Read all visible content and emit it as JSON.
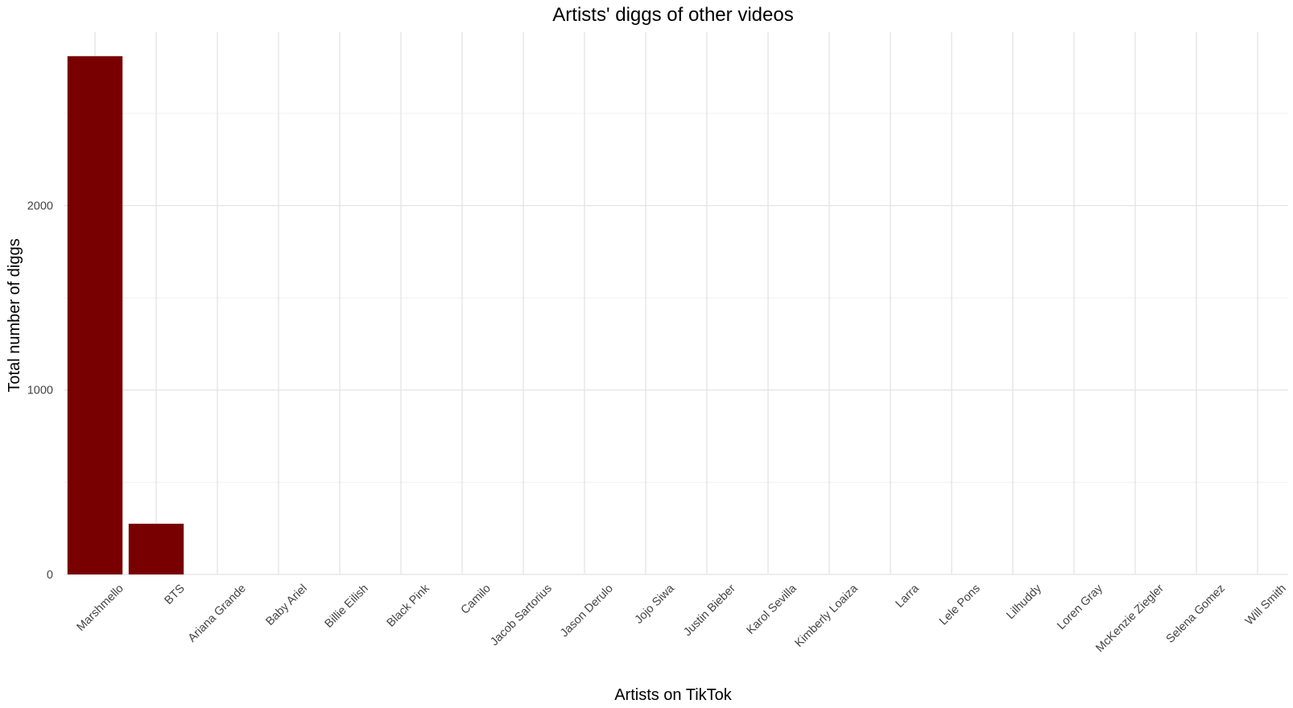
{
  "chart_data": {
    "type": "bar",
    "title": "Artists' diggs of other videos",
    "xlabel": "Artists on TikTok",
    "ylabel": "Total number of diggs",
    "categories": [
      "Marshmello",
      "BTS",
      "Ariana Grande",
      "Baby Ariel",
      "Billie Eilish",
      "Black Pink",
      "Camilo",
      "Jacob Sartorius",
      "Jason Derulo",
      "Jojo Siwa",
      "Justin Bieber",
      "Karol Sevilla",
      "Kimberly Loaiza",
      "Larra",
      "Lele Pons",
      "Lilhuddy",
      "Loren Gray",
      "McKenzie Ziegler",
      "Selena Gomez",
      "Will Smith"
    ],
    "values": [
      2810,
      275,
      0,
      0,
      0,
      0,
      0,
      0,
      0,
      0,
      0,
      0,
      0,
      0,
      0,
      0,
      0,
      0,
      0,
      0
    ],
    "yticks": [
      0,
      1000,
      2000
    ],
    "ylim": [
      0,
      2940
    ],
    "bar_color": "#780000",
    "grid": true,
    "legend": "none"
  }
}
